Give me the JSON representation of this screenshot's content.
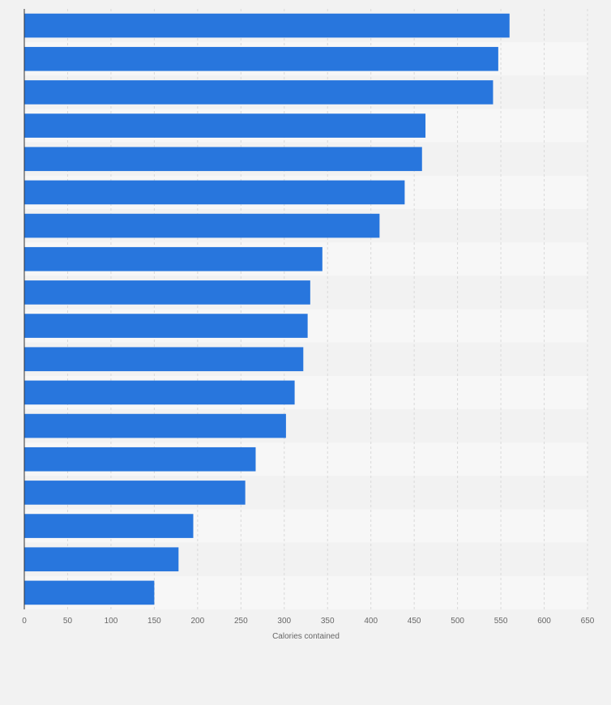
{
  "chart_data": {
    "type": "bar",
    "orientation": "horizontal",
    "title": "",
    "xlabel": "Calories contained",
    "ylabel": "",
    "categories": [
      "",
      "",
      "",
      "",
      "",
      "",
      "",
      "",
      "",
      "",
      "",
      "",
      "",
      "",
      "",
      "",
      "",
      ""
    ],
    "values": [
      560,
      547,
      541,
      463,
      459,
      439,
      410,
      344,
      330,
      327,
      322,
      312,
      302,
      267,
      255,
      195,
      178,
      150
    ],
    "xlim": [
      0,
      650
    ],
    "xticks": [
      0,
      50,
      100,
      150,
      200,
      250,
      300,
      350,
      400,
      450,
      500,
      550,
      600,
      650
    ],
    "grid": true,
    "legend": "none",
    "colors": {
      "bar": "#2876dd",
      "background": "#f2f2f2",
      "band_light": "#f7f7f7",
      "band_dark": "#f2f2f2",
      "grid": "#d9d9d9",
      "axis": "#333333",
      "text": "#666666"
    }
  }
}
